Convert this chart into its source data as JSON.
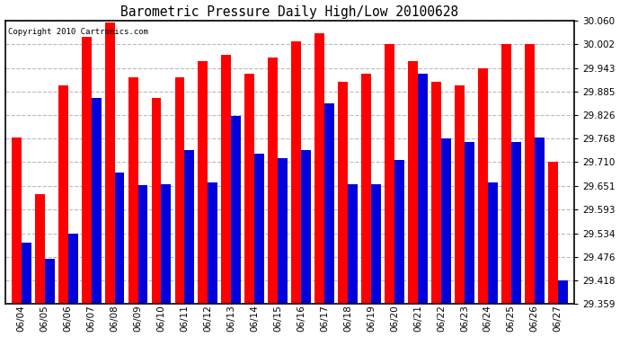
{
  "title": "Barometric Pressure Daily High/Low 20100628",
  "copyright": "Copyright 2010 Cartronics.com",
  "dates": [
    "06/04",
    "06/05",
    "06/06",
    "06/07",
    "06/08",
    "06/09",
    "06/10",
    "06/11",
    "06/12",
    "06/13",
    "06/14",
    "06/15",
    "06/16",
    "06/17",
    "06/18",
    "06/19",
    "06/20",
    "06/21",
    "06/22",
    "06/23",
    "06/24",
    "06/25",
    "06/26",
    "06/27"
  ],
  "highs": [
    29.77,
    29.63,
    29.9,
    30.02,
    30.055,
    29.92,
    29.87,
    29.92,
    29.96,
    29.975,
    29.93,
    29.968,
    30.01,
    30.03,
    29.91,
    29.93,
    30.002,
    29.96,
    29.91,
    29.9,
    29.942,
    30.002,
    30.002,
    29.71
  ],
  "lows": [
    29.51,
    29.47,
    29.534,
    29.868,
    29.685,
    29.653,
    29.655,
    29.74,
    29.66,
    29.825,
    29.73,
    29.72,
    29.74,
    29.855,
    29.655,
    29.655,
    29.715,
    29.93,
    29.768,
    29.76,
    29.66,
    29.76,
    29.77,
    29.418
  ],
  "high_color": "#ff0000",
  "low_color": "#0000dd",
  "bg_color": "#ffffff",
  "grid_color": "#bbbbbb",
  "yticks": [
    29.359,
    29.418,
    29.476,
    29.534,
    29.593,
    29.651,
    29.71,
    29.768,
    29.826,
    29.885,
    29.943,
    30.002,
    30.06
  ],
  "ymin": 29.359,
  "ymax": 30.06,
  "figwidth": 6.9,
  "figheight": 3.75,
  "dpi": 100
}
